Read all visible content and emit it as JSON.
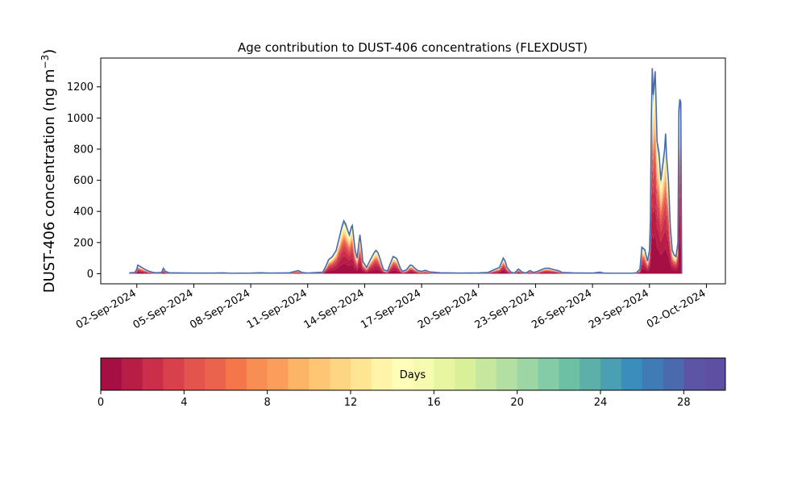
{
  "chart_data": {
    "type": "area",
    "stacked": true,
    "title": "Age contribution to DUST-406 concentrations (FLEXDUST)",
    "ylabel_main": "DUST-406 concentration (ng m",
    "ylabel_sup": "−3",
    "ylabel_close": ")",
    "xlabel": "",
    "ylim": [
      -65,
      1385
    ],
    "yticks": [
      0,
      200,
      400,
      600,
      800,
      1000,
      1200
    ],
    "xlim": [
      -0.9,
      32.0
    ],
    "xticks": [
      {
        "x": 1,
        "label": "02-Sep-2024"
      },
      {
        "x": 4,
        "label": "05-Sep-2024"
      },
      {
        "x": 7,
        "label": "08-Sep-2024"
      },
      {
        "x": 10,
        "label": "11-Sep-2024"
      },
      {
        "x": 13,
        "label": "14-Sep-2024"
      },
      {
        "x": 16,
        "label": "17-Sep-2024"
      },
      {
        "x": 19,
        "label": "20-Sep-2024"
      },
      {
        "x": 22,
        "label": "23-Sep-2024"
      },
      {
        "x": 25,
        "label": "26-Sep-2024"
      },
      {
        "x": 28,
        "label": "29-Sep-2024"
      },
      {
        "x": 31,
        "label": "02-Oct-2024"
      }
    ],
    "x_unit": "days from 01-Sep-2024 00:00",
    "series_total": [
      [
        0.6,
        5
      ],
      [
        0.9,
        8
      ],
      [
        1.0,
        30
      ],
      [
        1.05,
        55
      ],
      [
        1.2,
        45
      ],
      [
        1.4,
        30
      ],
      [
        1.6,
        18
      ],
      [
        1.8,
        10
      ],
      [
        2.0,
        6
      ],
      [
        2.3,
        8
      ],
      [
        2.4,
        35
      ],
      [
        2.5,
        15
      ],
      [
        2.7,
        6
      ],
      [
        3.0,
        5
      ],
      [
        4.0,
        4
      ],
      [
        5.0,
        4
      ],
      [
        5.5,
        5
      ],
      [
        6.0,
        3
      ],
      [
        7.0,
        4
      ],
      [
        7.5,
        6
      ],
      [
        8.0,
        4
      ],
      [
        9.0,
        5
      ],
      [
        9.5,
        20
      ],
      [
        9.7,
        8
      ],
      [
        10.0,
        4
      ],
      [
        10.5,
        8
      ],
      [
        10.8,
        10
      ],
      [
        10.9,
        35
      ],
      [
        11.0,
        60
      ],
      [
        11.1,
        90
      ],
      [
        11.3,
        110
      ],
      [
        11.5,
        150
      ],
      [
        11.7,
        250
      ],
      [
        11.8,
        300
      ],
      [
        11.9,
        340
      ],
      [
        12.0,
        320
      ],
      [
        12.1,
        280
      ],
      [
        12.2,
        250
      ],
      [
        12.3,
        300
      ],
      [
        12.35,
        310
      ],
      [
        12.5,
        150
      ],
      [
        12.6,
        100
      ],
      [
        12.7,
        200
      ],
      [
        12.75,
        250
      ],
      [
        12.85,
        150
      ],
      [
        12.9,
        80
      ],
      [
        13.1,
        40
      ],
      [
        13.3,
        90
      ],
      [
        13.5,
        135
      ],
      [
        13.6,
        150
      ],
      [
        13.7,
        135
      ],
      [
        13.8,
        100
      ],
      [
        13.9,
        60
      ],
      [
        14.0,
        25
      ],
      [
        14.2,
        18
      ],
      [
        14.4,
        80
      ],
      [
        14.5,
        110
      ],
      [
        14.6,
        105
      ],
      [
        14.7,
        95
      ],
      [
        14.8,
        60
      ],
      [
        14.9,
        30
      ],
      [
        15.0,
        15
      ],
      [
        15.2,
        25
      ],
      [
        15.4,
        55
      ],
      [
        15.5,
        52
      ],
      [
        15.6,
        40
      ],
      [
        15.8,
        20
      ],
      [
        16.0,
        15
      ],
      [
        16.2,
        22
      ],
      [
        16.4,
        12
      ],
      [
        16.6,
        10
      ],
      [
        17.0,
        6
      ],
      [
        18.0,
        4
      ],
      [
        19.0,
        5
      ],
      [
        19.5,
        8
      ],
      [
        19.8,
        25
      ],
      [
        20.1,
        40
      ],
      [
        20.3,
        100
      ],
      [
        20.4,
        80
      ],
      [
        20.5,
        40
      ],
      [
        20.7,
        10
      ],
      [
        20.9,
        5
      ],
      [
        21.1,
        30
      ],
      [
        21.3,
        10
      ],
      [
        21.5,
        5
      ],
      [
        21.7,
        20
      ],
      [
        21.9,
        8
      ],
      [
        22.1,
        15
      ],
      [
        22.3,
        25
      ],
      [
        22.5,
        35
      ],
      [
        22.7,
        35
      ],
      [
        23.0,
        25
      ],
      [
        23.2,
        20
      ],
      [
        23.4,
        8
      ],
      [
        24.0,
        5
      ],
      [
        25.0,
        4
      ],
      [
        25.4,
        10
      ],
      [
        25.6,
        4
      ],
      [
        26.0,
        3
      ],
      [
        27.0,
        3
      ],
      [
        27.3,
        5
      ],
      [
        27.5,
        30
      ],
      [
        27.6,
        170
      ],
      [
        27.75,
        155
      ],
      [
        27.9,
        80
      ],
      [
        28.0,
        150
      ],
      [
        28.05,
        350
      ],
      [
        28.1,
        1000
      ],
      [
        28.15,
        1320
      ],
      [
        28.2,
        1150
      ],
      [
        28.3,
        1300
      ],
      [
        28.35,
        1100
      ],
      [
        28.4,
        850
      ],
      [
        28.5,
        780
      ],
      [
        28.6,
        600
      ],
      [
        28.7,
        700
      ],
      [
        28.8,
        800
      ],
      [
        28.85,
        900
      ],
      [
        28.9,
        750
      ],
      [
        29.0,
        600
      ],
      [
        29.1,
        300
      ],
      [
        29.2,
        150
      ],
      [
        29.3,
        120
      ],
      [
        29.4,
        110
      ],
      [
        29.5,
        200
      ],
      [
        29.55,
        1050
      ],
      [
        29.6,
        1120
      ],
      [
        29.65,
        1100
      ],
      [
        29.7,
        0
      ]
    ],
    "age_profile_note": "",
    "colorbar": {
      "label": "Days",
      "range": [
        0,
        30
      ],
      "ticks": [
        0,
        4,
        8,
        12,
        16,
        20,
        24,
        28
      ],
      "colors": [
        "#a50f44",
        "#b81d46",
        "#cb2e4a",
        "#d8404b",
        "#e2544c",
        "#ea634c",
        "#f4764a",
        "#f88e54",
        "#fb9e5c",
        "#fdb466",
        "#fdc574",
        "#fed683",
        "#fee593",
        "#fff4a7",
        "#fffeb9",
        "#f5fbaf",
        "#e8f5a1",
        "#d9f099",
        "#c6e89e",
        "#b3e0a2",
        "#9cd6a4",
        "#84cba7",
        "#6ec0a4",
        "#5cb0a9",
        "#4a9fb3",
        "#3a8eb9",
        "#3f7cb6",
        "#4b6aae",
        "#5c55a4",
        "#5e4fa2"
      ]
    },
    "grid": false
  }
}
